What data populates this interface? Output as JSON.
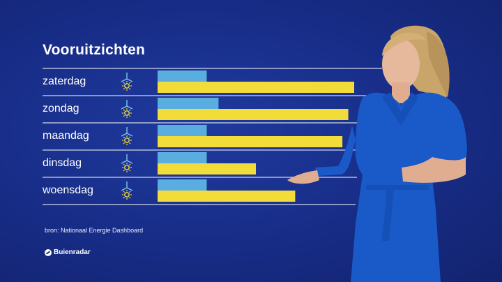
{
  "title": "Vooruitzichten",
  "source": "bron: Nationaal Energie Dashboard",
  "logo": {
    "text": "Buienradar",
    "icon": "buienradar-logo-icon"
  },
  "colors": {
    "wind": "#5aaedf",
    "solar": "#f2dc3a",
    "background": "#172c86",
    "rule": "#ffffff"
  },
  "chart_data": {
    "type": "bar",
    "orientation": "horizontal",
    "categories": [
      "zaterdag",
      "zondag",
      "maandag",
      "dinsdag",
      "woensdag"
    ],
    "row_icons": [
      "wind-turbine-sun-icon",
      "wind-turbine-sun-icon",
      "wind-turbine-sun-icon",
      "wind-turbine-sun-icon",
      "wind-turbine-sun-icon"
    ],
    "series": [
      {
        "values": [
          25,
          31,
          25,
          25,
          25
        ]
      },
      {
        "values": [
          100,
          97,
          94,
          50,
          70
        ]
      }
    ],
    "xlim": [
      0,
      100
    ],
    "grid": false,
    "legend": "none"
  }
}
